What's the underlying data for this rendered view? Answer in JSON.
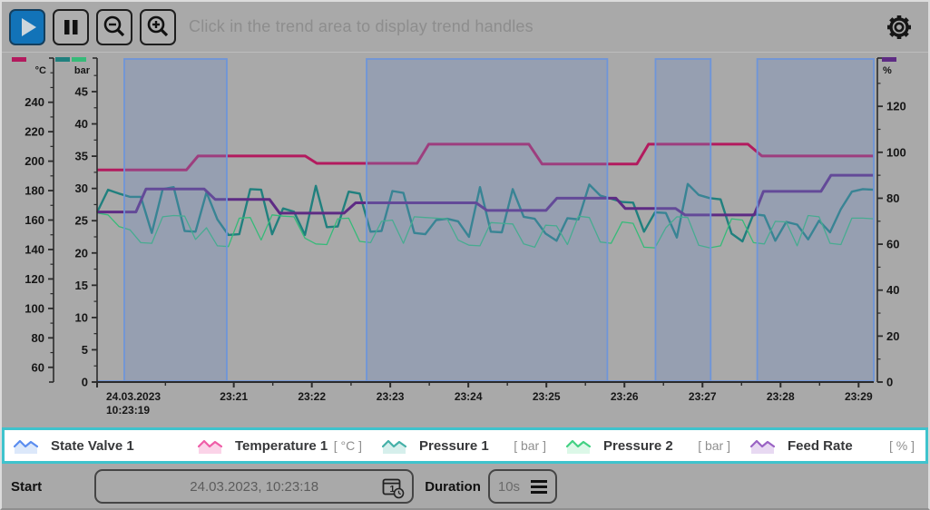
{
  "toolbar": {
    "hint": "Click in the trend area to display trend handles",
    "buttons": {
      "play": "play-icon",
      "pause": "pause-icon",
      "zoom_out": "zoom-out-icon",
      "zoom_in": "zoom-in-icon",
      "settings": "gear-icon"
    }
  },
  "chart_data": {
    "type": "line",
    "title": "",
    "grid": false,
    "x_axis": {
      "ticks": [
        {
          "f": 0.0,
          "label": "24.03.2023",
          "label2": "10:23:19",
          "align": "start"
        },
        {
          "f": 0.176,
          "label": "23:21"
        },
        {
          "f": 0.2765,
          "label": "23:22"
        },
        {
          "f": 0.3775,
          "label": "23:23"
        },
        {
          "f": 0.478,
          "label": "23:24"
        },
        {
          "f": 0.5785,
          "label": "23:25"
        },
        {
          "f": 0.679,
          "label": "23:26"
        },
        {
          "f": 0.7795,
          "label": "23:27"
        },
        {
          "f": 0.88,
          "label": "23:28"
        },
        {
          "f": 0.9805,
          "label": "23:29"
        }
      ]
    },
    "y_axes": [
      {
        "id": "degC",
        "unit": "°C",
        "side": "left",
        "x": 57,
        "range": [
          50,
          270
        ],
        "major_from": 60,
        "major_to": 240,
        "major_step": 20,
        "minor_step": 10,
        "chips": [
          "#b31a5e"
        ]
      },
      {
        "id": "bar",
        "unit": "bar",
        "side": "left",
        "x": 105,
        "range": [
          0,
          50.2
        ],
        "major_from": 0,
        "major_to": 45,
        "major_step": 5,
        "minor_step": 2.5,
        "chips": [
          "#20807e",
          "#36ba79"
        ]
      },
      {
        "id": "pct",
        "unit": "%",
        "side": "right",
        "x": 965,
        "range": [
          0,
          141
        ],
        "major_from": 0,
        "major_to": 120,
        "major_step": 20,
        "minor_step": 10,
        "chips": [
          "#5e2b84"
        ]
      }
    ],
    "series": [
      {
        "name": "State Valve 1",
        "kind": "digital",
        "color": "#6e95d9",
        "fill": "rgba(112,140,195,0.32)",
        "width": 1.8,
        "on_intervals": [
          [
            0.035,
            0.167
          ],
          [
            0.347,
            0.657
          ],
          [
            0.719,
            0.79
          ],
          [
            0.85,
            1.0
          ]
        ]
      },
      {
        "name": "Temperature 1",
        "kind": "step",
        "axis": "degC",
        "color": "#b31a5e",
        "width": 3,
        "points": [
          [
            0,
            194
          ],
          [
            0.115,
            194
          ],
          [
            0.13,
            203.5
          ],
          [
            0.268,
            203.5
          ],
          [
            0.283,
            198.5
          ],
          [
            0.412,
            198.5
          ],
          [
            0.427,
            211.5
          ],
          [
            0.556,
            211.5
          ],
          [
            0.573,
            198
          ],
          [
            0.695,
            198
          ],
          [
            0.71,
            211.5
          ],
          [
            0.838,
            211.5
          ],
          [
            0.856,
            203.5
          ],
          [
            1,
            203.5
          ]
        ]
      },
      {
        "name": "Pressure 1",
        "kind": "noisy",
        "axis": "bar",
        "color": "#20807e",
        "width": 2.4,
        "values": [
          26.3,
          29.8,
          29.2,
          28.7,
          28.7,
          23.1,
          29.9,
          30.2,
          23.4,
          23.3,
          29.4,
          25.2,
          22.8,
          22.9,
          29.9,
          29.8,
          22.9,
          26.9,
          26.4,
          22.8,
          30.4,
          24.0,
          24.1,
          29.5,
          29.2,
          23.3,
          23.4,
          29.6,
          29.3,
          23.1,
          22.9,
          25.1,
          25.3,
          24.9,
          22.5,
          30.2,
          23.3,
          23.2,
          29.9,
          25.6,
          25.3,
          23.0,
          21.9,
          25.4,
          25.2,
          30.6,
          28.9,
          28.4,
          27.9,
          27.8,
          23.3,
          26.3,
          26.2,
          22.4,
          30.7,
          29.0,
          28.5,
          28.3,
          23.0,
          21.8,
          26.0,
          25.8,
          21.9,
          24.8,
          24.4,
          22.1,
          25.0,
          23.2,
          26.8,
          29.5,
          29.9,
          29.8
        ]
      },
      {
        "name": "Pressure 2",
        "kind": "noisy",
        "axis": "bar",
        "color": "#36ba79",
        "width": 1.3,
        "values": [
          26.2,
          25.9,
          24.1,
          23.6,
          21.6,
          21.5,
          25.6,
          25.8,
          25.7,
          22.1,
          23.9,
          21.1,
          21.0,
          25.4,
          25.5,
          22.0,
          25.9,
          25.7,
          25.6,
          22.3,
          21.4,
          21.3,
          25.3,
          25.4,
          21.8,
          21.6,
          24.9,
          25.1,
          21.5,
          25.6,
          25.5,
          25.4,
          25.3,
          22.0,
          21.2,
          21.1,
          24.7,
          24.6,
          24.5,
          21.4,
          20.9,
          24.3,
          24.2,
          21.3,
          25.7,
          25.5,
          21.7,
          21.5,
          24.8,
          24.6,
          20.9,
          20.8,
          23.9,
          25.6,
          25.5,
          21.2,
          20.8,
          21.1,
          25.3,
          25.1,
          21.6,
          21.4,
          24.9,
          24.8,
          21.1,
          25.8,
          25.6,
          21.5,
          21.3,
          25.4,
          25.4,
          25.3
        ]
      },
      {
        "name": "Feed Rate",
        "kind": "step",
        "axis": "pct",
        "color": "#5e2b84",
        "width": 3,
        "points": [
          [
            0,
            74
          ],
          [
            0.05,
            74
          ],
          [
            0.063,
            84
          ],
          [
            0.138,
            84
          ],
          [
            0.152,
            79.5
          ],
          [
            0.222,
            79.5
          ],
          [
            0.235,
            73.5
          ],
          [
            0.318,
            73.5
          ],
          [
            0.333,
            78
          ],
          [
            0.488,
            78
          ],
          [
            0.502,
            74.7
          ],
          [
            0.578,
            74.7
          ],
          [
            0.592,
            80
          ],
          [
            0.668,
            80
          ],
          [
            0.68,
            75.5
          ],
          [
            0.745,
            75.5
          ],
          [
            0.757,
            72.7
          ],
          [
            0.846,
            72.7
          ],
          [
            0.858,
            83
          ],
          [
            0.932,
            83
          ],
          [
            0.945,
            90
          ],
          [
            1,
            90
          ]
        ]
      }
    ]
  },
  "legend": {
    "items": [
      {
        "name": "State Valve 1",
        "unit": "",
        "stroke": "#5b8def",
        "fill": "#dce8fa"
      },
      {
        "name": "Temperature 1",
        "unit": "[ °C ]",
        "stroke": "#ef5da8",
        "fill": "#fbd3e8"
      },
      {
        "name": "Pressure 1",
        "unit": "[ bar ]",
        "stroke": "#45b0a8",
        "fill": "#d6efec"
      },
      {
        "name": "Pressure 2",
        "unit": "[ bar ]",
        "stroke": "#43d183",
        "fill": "#dcf8e8"
      },
      {
        "name": "Feed Rate",
        "unit": "[ % ]",
        "stroke": "#9a63c4",
        "fill": "#e8d9f2"
      }
    ]
  },
  "footer": {
    "start_label": "Start",
    "start_value": "24.03.2023, 10:23:18",
    "calendar_icon": "calendar-clock-icon",
    "duration_label": "Duration",
    "duration_value": "10s",
    "duration_menu_icon": "hamburger-icon"
  }
}
